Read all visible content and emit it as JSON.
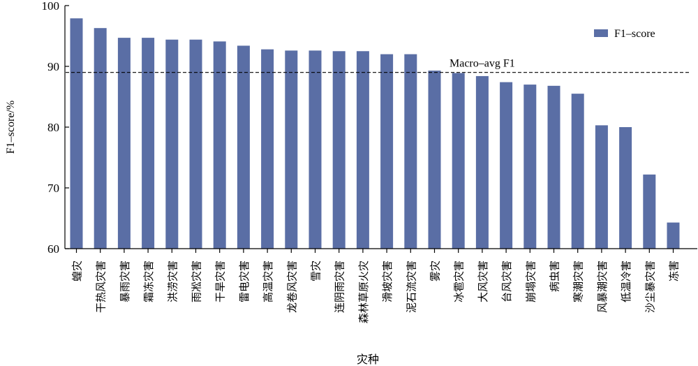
{
  "chart_data": {
    "type": "bar",
    "categories": [
      "蝗灾",
      "干热风灾害",
      "暴雨灾害",
      "霜冻灾害",
      "洪涝灾害",
      "雨凇灾害",
      "干旱灾害",
      "雷电灾害",
      "高温灾害",
      "龙卷风灾害",
      "雪灾",
      "连阴雨灾害",
      "森林草原火灾",
      "滑坡灾害",
      "泥石流灾害",
      "雾灾",
      "冰雹灾害",
      "大风灾害",
      "台风灾害",
      "崩塌灾害",
      "病虫害",
      "寒潮灾害",
      "风暴潮灾害",
      "低温冷害",
      "沙尘暴灾害",
      "冻害"
    ],
    "series": [
      {
        "name": "F1–score",
        "values": [
          97.9,
          96.3,
          94.7,
          94.7,
          94.4,
          94.4,
          94.1,
          93.4,
          92.8,
          92.6,
          92.6,
          92.5,
          92.5,
          92.0,
          92.0,
          89.3,
          88.9,
          88.4,
          87.4,
          87.0,
          86.8,
          85.5,
          80.3,
          80.0,
          72.2,
          64.3
        ],
        "color": "#5a6ea5"
      }
    ],
    "reference_line": {
      "label": "Macro–avg F1",
      "value": 89.0
    },
    "xlabel": "灾种",
    "ylabel": "F1–score/%",
    "ylim": [
      60,
      100
    ],
    "yticks": [
      "60",
      "70",
      "80",
      "90",
      "100"
    ],
    "legend_position": "top-right",
    "grid": false
  }
}
